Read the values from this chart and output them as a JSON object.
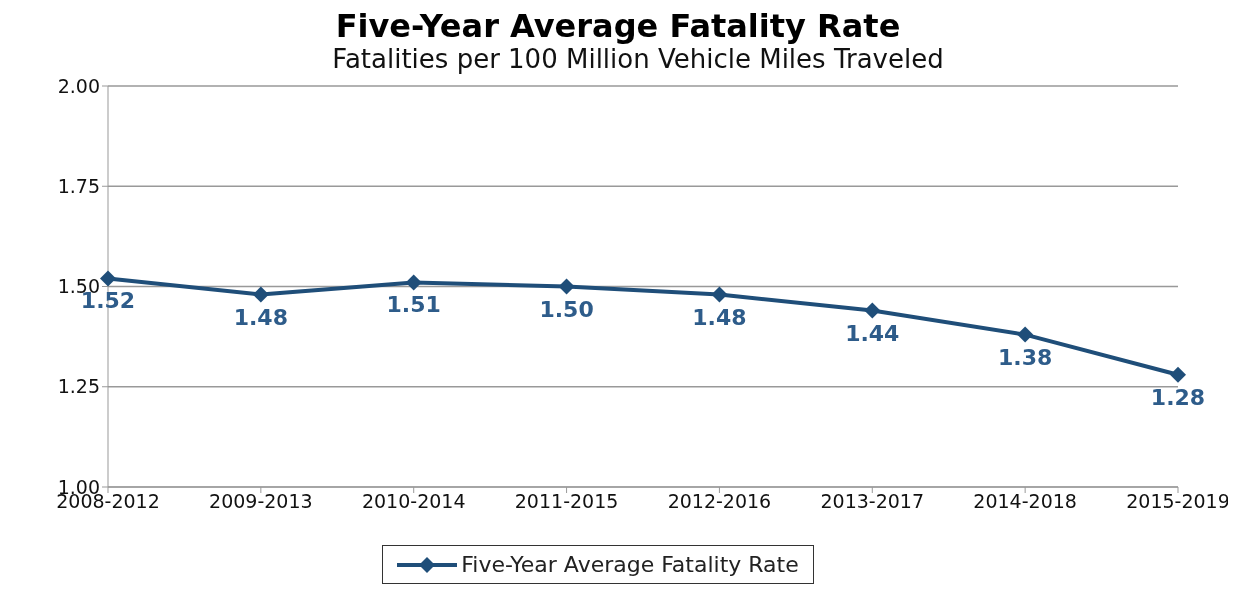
{
  "chart_data": {
    "type": "line",
    "title": "Five-Year Average Fatality Rate",
    "subtitle": "Fatalities per 100 Million Vehicle Miles Traveled",
    "categories": [
      "2008-2012",
      "2009-2013",
      "2010-2014",
      "2011-2015",
      "2012-2016",
      "2013-2017",
      "2014-2018",
      "2015-2019"
    ],
    "series": [
      {
        "name": "Five-Year Average Fatality Rate",
        "color": "#1f4e79",
        "values": [
          1.52,
          1.48,
          1.51,
          1.5,
          1.48,
          1.44,
          1.38,
          1.28
        ],
        "value_labels": [
          "1.52",
          "1.48",
          "1.51",
          "1.50",
          "1.48",
          "1.44",
          "1.38",
          "1.28"
        ]
      }
    ],
    "ylim": [
      1,
      2
    ],
    "yticks": [
      {
        "value": 1,
        "label": "1.00"
      },
      {
        "value": 1.25,
        "label": "1.25"
      },
      {
        "value": 1.5,
        "label": "1.50"
      },
      {
        "value": 1.75,
        "label": "1.75"
      },
      {
        "value": 2,
        "label": "2.00"
      }
    ],
    "grid": "y",
    "legend": "bottom",
    "marker": "diamond",
    "line_style": "solid"
  }
}
